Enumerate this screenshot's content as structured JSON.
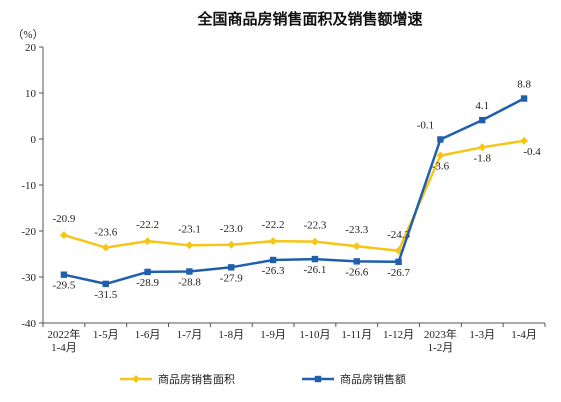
{
  "chart_data": {
    "type": "line",
    "title": "全国商品房销售面积及销售额增速",
    "unit_label": "（%）",
    "categories": [
      [
        "2022年",
        "1-4月"
      ],
      [
        "1-5月"
      ],
      [
        "1-6月"
      ],
      [
        "1-7月"
      ],
      [
        "1-8月"
      ],
      [
        "1-9月"
      ],
      [
        "1-10月"
      ],
      [
        "1-11月"
      ],
      [
        "1-12月"
      ],
      [
        "2023年",
        "1-2月"
      ],
      [
        "1-3月"
      ],
      [
        "1-4月"
      ]
    ],
    "ylim": [
      -40,
      20
    ],
    "yticks": [
      20,
      10,
      0,
      -10,
      -20,
      -30,
      -40
    ],
    "grid": false,
    "legend_position": "bottom",
    "series": [
      {
        "name": "商品房销售面积",
        "color": "#F5C518",
        "marker": "diamond",
        "values": [
          -20.9,
          -23.6,
          -22.2,
          -23.1,
          -23.0,
          -22.2,
          -22.3,
          -23.3,
          -24.3,
          -3.6,
          -1.8,
          -0.4
        ],
        "labels": [
          "-20.9",
          "-23.6",
          "-22.2",
          "-23.1",
          "-23.0",
          "-22.2",
          "-22.3",
          "-23.3",
          "-24.3",
          "-3.6",
          "-1.8",
          "-0.4"
        ]
      },
      {
        "name": "商品房销售额",
        "color": "#1F5FAE",
        "marker": "square",
        "values": [
          -29.5,
          -31.5,
          -28.9,
          -28.8,
          -27.9,
          -26.3,
          -26.1,
          -26.6,
          -26.7,
          -0.1,
          4.1,
          8.8
        ],
        "labels": [
          "-29.5",
          "-31.5",
          "-28.9",
          "-28.8",
          "-27.9",
          "-26.3",
          "-26.1",
          "-26.6",
          "-26.7",
          "-0.1",
          "4.1",
          "8.8"
        ]
      }
    ]
  }
}
